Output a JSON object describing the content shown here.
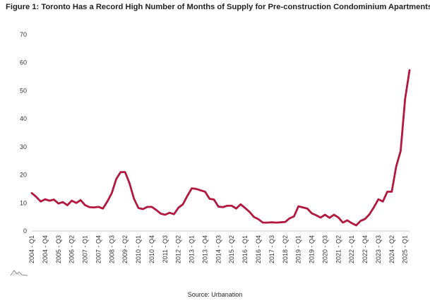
{
  "chart_data": {
    "type": "line",
    "title": "Figure 1: Toronto Has a Record High Number of Months of Supply for Pre-construction Condominium Apartments",
    "source": "Source: Urbanation",
    "ylim": [
      0,
      70
    ],
    "yticks": [
      0,
      10,
      20,
      30,
      40,
      50,
      60,
      70
    ],
    "grid": false,
    "line_color": "#b3173e",
    "x_tick_labels": [
      "2004 - Q1",
      "2004 - Q4",
      "2005 - Q3",
      "2006 - Q2",
      "2007 - Q1",
      "2007 - Q4",
      "2008 - Q3",
      "2009 - Q2",
      "2010 - Q1",
      "2010 - Q4",
      "2011 - Q3",
      "2012 - Q2",
      "2013 - Q1",
      "2013 - Q4",
      "2014 - Q3",
      "2015 - Q2",
      "2016 - Q1",
      "2016 - Q4",
      "2017 - Q3",
      "2018 - Q2",
      "2019 - Q1",
      "2019 - Q4",
      "2020 - Q3",
      "2021 - Q2",
      "2022 - Q1",
      "2022 - Q4",
      "2023 - Q3",
      "2024 - Q2",
      "2025 - Q1"
    ],
    "series": [
      {
        "values": [
          13.5,
          12.2,
          10.5,
          11.3,
          10.8,
          11.2,
          9.8,
          10.3,
          9.2,
          10.8,
          10.0,
          11.0,
          9.2,
          8.5,
          8.4,
          8.6,
          8.0,
          10.5,
          13.5,
          18.5,
          21.0,
          21.0,
          17.0,
          11.5,
          8.2,
          7.8,
          8.6,
          8.6,
          7.5,
          6.2,
          5.8,
          6.5,
          6.0,
          8.3,
          9.5,
          12.5,
          15.2,
          15.0,
          14.5,
          14.0,
          11.5,
          11.2,
          8.7,
          8.5,
          9.0,
          9.0,
          8.0,
          9.5,
          8.2,
          6.8,
          5.0,
          4.2,
          3.0,
          3.0,
          3.1,
          3.0,
          3.1,
          3.2,
          4.5,
          5.2,
          8.8,
          8.4,
          8.0,
          6.3,
          5.6,
          4.8,
          5.8,
          4.7,
          5.8,
          4.8,
          3.0,
          3.8,
          2.8,
          2.0,
          3.6,
          4.3,
          6.0,
          8.5,
          11.3,
          10.5,
          14.0,
          14.0,
          23.0,
          28.5,
          47.0,
          57.3
        ]
      }
    ]
  }
}
